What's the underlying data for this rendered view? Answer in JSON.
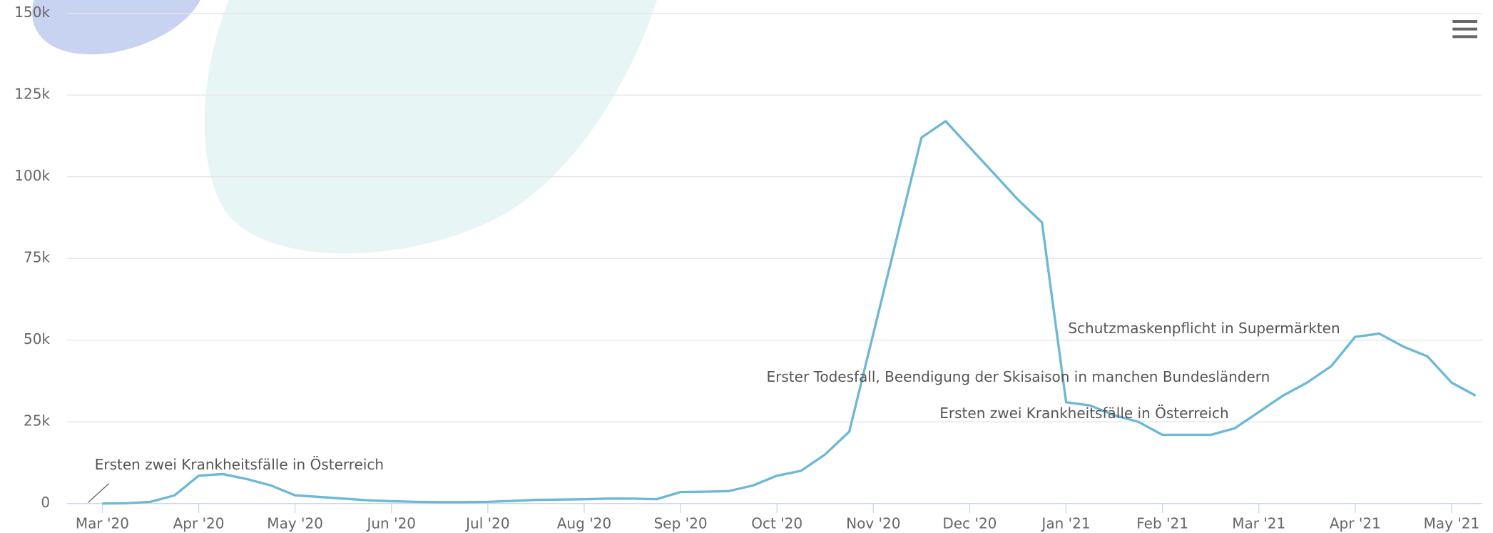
{
  "chart_data": {
    "type": "line",
    "categories": [
      "Mar '20",
      null,
      null,
      null,
      "Apr '20",
      null,
      null,
      null,
      "May '20",
      null,
      null,
      null,
      "Jun '20",
      null,
      null,
      null,
      "Jul '20",
      null,
      null,
      null,
      "Aug '20",
      null,
      null,
      null,
      "Sep '20",
      null,
      null,
      null,
      "Oct '20",
      null,
      null,
      null,
      "Nov '20",
      null,
      null,
      null,
      "Dec '20",
      null,
      null,
      null,
      "Jan '21",
      null,
      null,
      null,
      "Feb '21",
      null,
      null,
      null,
      "Mar '21",
      null,
      null,
      null,
      "Apr '21",
      null,
      null,
      null,
      "May '21",
      null
    ],
    "values": [
      0,
      100,
      500,
      2500,
      8500,
      9000,
      7500,
      5500,
      2500,
      2000,
      1500,
      1000,
      700,
      500,
      400,
      400,
      500,
      800,
      1100,
      1200,
      1300,
      1500,
      1500,
      1300,
      3500,
      3600,
      3800,
      5500,
      8500,
      10000,
      15000,
      22000,
      52000,
      82000,
      112000,
      117000,
      109000,
      101000,
      93000,
      86000,
      31000,
      30000,
      27000,
      25000,
      21000,
      21000,
      21000,
      23000,
      28000,
      33000,
      37000,
      42000,
      51000,
      52000,
      48000,
      45000,
      37000,
      33000
    ],
    "color": "#6cb8d6",
    "ylim": [
      0,
      150000
    ],
    "yticks": [
      {
        "value": 0,
        "label": "0"
      },
      {
        "value": 25000,
        "label": "25k"
      },
      {
        "value": 50000,
        "label": "50k"
      },
      {
        "value": 75000,
        "label": "75k"
      },
      {
        "value": 100000,
        "label": "100k"
      },
      {
        "value": 125000,
        "label": "125k"
      },
      {
        "value": 150000,
        "label": "150k"
      }
    ],
    "grid": true,
    "annotations": [
      "Ersten zwei Krankheitsfälle in Österreich",
      "Schutzmaskenpflicht in Supermärkten",
      "Erster Todesfall, Beendigung der Skisaison in manchen Bundesländern",
      "Ersten zwei Krankheitsfälle in Österreich"
    ]
  }
}
